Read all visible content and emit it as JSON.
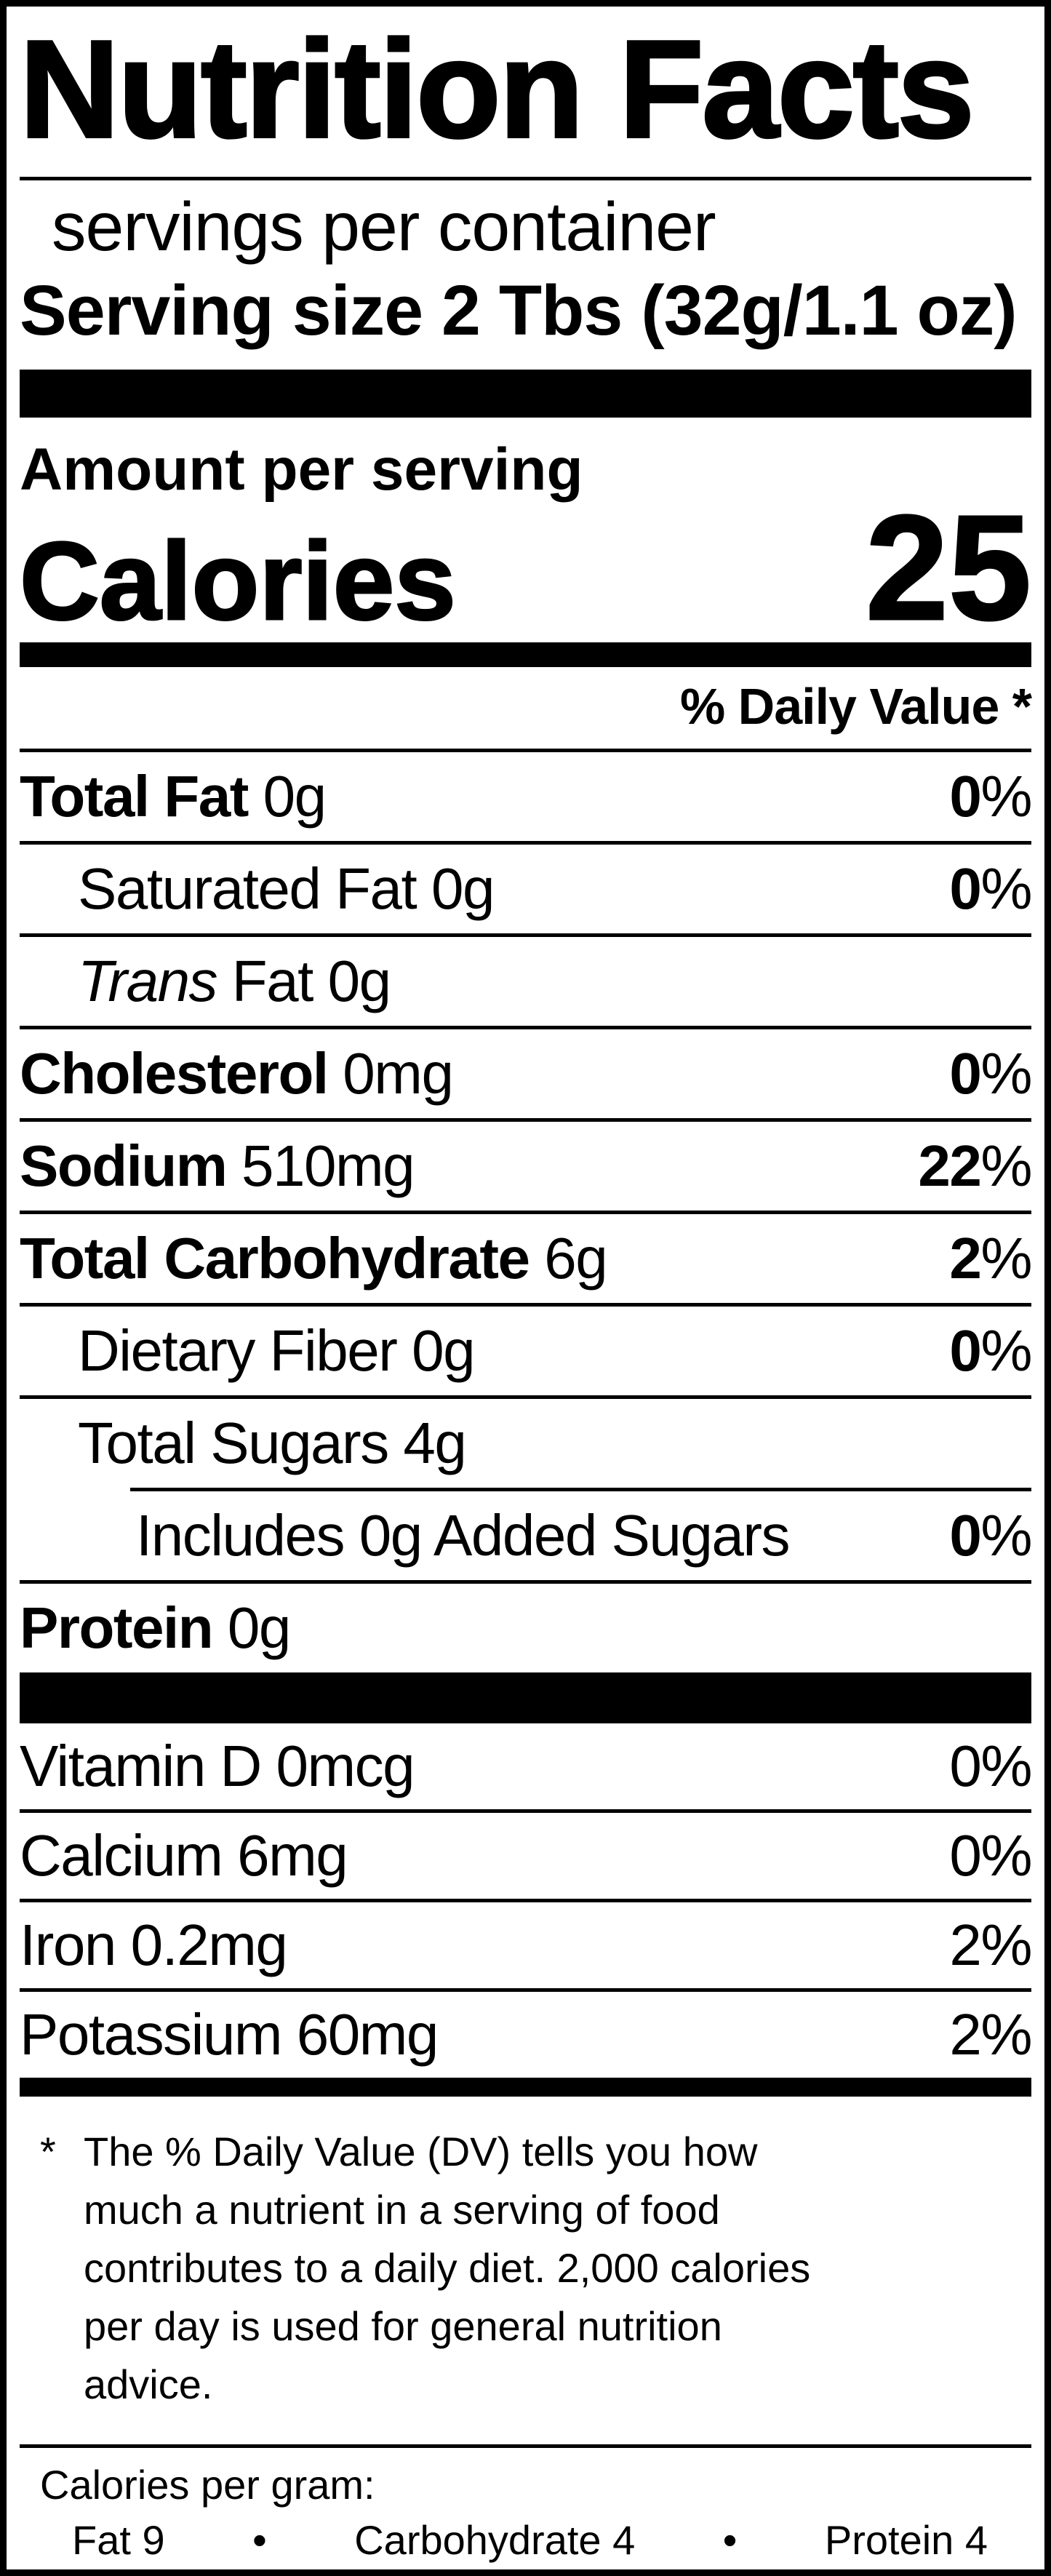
{
  "label": {
    "title": "Nutrition Facts",
    "servings_per_container": "servings per container",
    "serving_size_line": "Serving size 2 Tbs (32g/1.1 oz)",
    "amount_per_serving": "Amount per serving",
    "calories_label": "Calories",
    "calories_value": "25",
    "daily_value_header": "% Daily Value *",
    "rows": [
      {
        "bold": "Total Fat",
        "italic": "",
        "rest": " 0g",
        "dv": "0",
        "sign": "%"
      },
      {
        "bold": "",
        "italic": "",
        "rest": "Saturated Fat 0g",
        "dv": "0",
        "sign": "%"
      },
      {
        "bold": "",
        "italic": "Trans",
        "rest": " Fat 0g",
        "dv": "",
        "sign": ""
      },
      {
        "bold": "Cholesterol",
        "italic": "",
        "rest": " 0mg",
        "dv": "0",
        "sign": "%"
      },
      {
        "bold": "Sodium",
        "italic": "",
        "rest": " 510mg",
        "dv": "22",
        "sign": "%"
      },
      {
        "bold": "Total Carbohydrate",
        "italic": "",
        "rest": " 6g",
        "dv": "2",
        "sign": "%"
      },
      {
        "bold": "",
        "italic": "",
        "rest": "Dietary Fiber 0g",
        "dv": "0",
        "sign": "%"
      },
      {
        "bold": "",
        "italic": "",
        "rest": "Total Sugars 4g",
        "dv": "",
        "sign": ""
      },
      {
        "bold": "",
        "italic": "",
        "rest": "Includes 0g Added Sugars",
        "dv": "0",
        "sign": "%"
      },
      {
        "bold": "Protein",
        "italic": "",
        "rest": " 0g",
        "dv": "",
        "sign": ""
      }
    ],
    "vitamins": [
      {
        "name": "Vitamin D 0mcg",
        "dv": "0",
        "sign": "%"
      },
      {
        "name": "Calcium 6mg",
        "dv": "0",
        "sign": "%"
      },
      {
        "name": "Iron 0.2mg",
        "dv": "2",
        "sign": "%"
      },
      {
        "name": "Potassium 60mg",
        "dv": "2",
        "sign": "%"
      }
    ],
    "footnote_marker": "*",
    "footnote": "The % Daily Value (DV) tells you how\nmuch a nutrient in a serving of food\ncontributes to a daily diet. 2,000 calories\nper day is used for general nutrition\nadvice.",
    "calories_per_gram_label": "Calories per gram:",
    "cpg": {
      "fat": "Fat 9",
      "bullet1": "•",
      "carb": "Carbohydrate 4",
      "bullet2": "•",
      "protein": "Protein 4"
    }
  }
}
